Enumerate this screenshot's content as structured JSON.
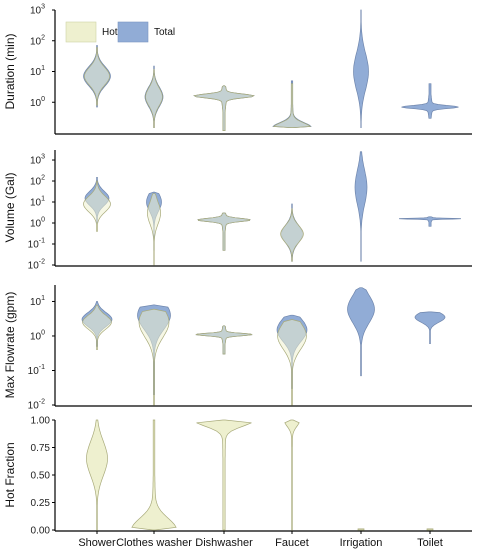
{
  "colors": {
    "hot": "#eef0cf",
    "total": "#91acd6",
    "overlap": "#c8d6d3",
    "axis": "#000000"
  },
  "chart_data": {
    "type": "violin",
    "legend": {
      "position": "top-left",
      "entries": [
        "Hot",
        "Total"
      ]
    },
    "categories": [
      "Shower",
      "Clothes washer",
      "Dishwasher",
      "Faucet",
      "Irrigation",
      "Toilet"
    ],
    "panels": [
      {
        "id": "duration",
        "ylabel": "Duration (min)",
        "scale": "log",
        "ylim": [
          0.1,
          1000
        ],
        "ticks": [
          {
            "b": "10",
            "e": "0",
            "v": 1
          },
          {
            "b": "10",
            "e": "1",
            "v": 10
          },
          {
            "b": "10",
            "e": "2",
            "v": 100
          },
          {
            "b": "10",
            "e": "3",
            "v": 1000
          }
        ],
        "series": {
          "Total": [
            {
              "min": 0.7,
              "max": 70,
              "mode": 7,
              "halfwidth": 0.45,
              "shape": "norm"
            },
            {
              "min": 0.15,
              "max": 15,
              "mode": 1.5,
              "halfwidth": 0.3,
              "shape": "norm"
            },
            {
              "min": 0.12,
              "max": 3.5,
              "mode": 1.6,
              "halfwidth": 0.9,
              "shape": "flare"
            },
            {
              "min": 0.15,
              "max": 5,
              "mode": 0.4,
              "halfwidth": 0.6,
              "shape": "bottom"
            },
            {
              "min": 0.15,
              "max": 1000,
              "mode": 10,
              "halfwidth": 0.25,
              "shape": "norm"
            },
            {
              "min": 0.3,
              "max": 4,
              "mode": 0.7,
              "halfwidth": 0.85,
              "shape": "flare"
            }
          ],
          "Hot": [
            {
              "min": 0.8,
              "max": 60,
              "mode": 7,
              "halfwidth": 0.42,
              "shape": "norm"
            },
            {
              "min": 0.15,
              "max": 12,
              "mode": 1.5,
              "halfwidth": 0.28,
              "shape": "norm"
            },
            {
              "min": 0.12,
              "max": 3.5,
              "mode": 1.6,
              "halfwidth": 0.9,
              "shape": "flare"
            },
            {
              "min": 0.15,
              "max": 4,
              "mode": 0.4,
              "halfwidth": 0.58,
              "shape": "bottom"
            },
            null,
            null
          ]
        }
      },
      {
        "id": "volume",
        "ylabel": "Volume (Gal)",
        "scale": "log",
        "ylim": [
          0.01,
          3000
        ],
        "ticks": [
          {
            "b": "10",
            "e": "-2",
            "v": 0.01
          },
          {
            "b": "10",
            "e": "-1",
            "v": 0.1
          },
          {
            "b": "10",
            "e": "0",
            "v": 1
          },
          {
            "b": "10",
            "e": "1",
            "v": 10
          },
          {
            "b": "10",
            "e": "2",
            "v": 100
          },
          {
            "b": "10",
            "e": "3",
            "v": 1000
          }
        ],
        "series": {
          "Total": [
            {
              "min": 1,
              "max": 150,
              "mode": 15,
              "halfwidth": 0.4,
              "shape": "norm"
            },
            {
              "min": 0.05,
              "max": 30,
              "mode": 10,
              "halfwidth": 0.25,
              "shape": "norm"
            },
            {
              "min": 0.05,
              "max": 3,
              "mode": 1.4,
              "halfwidth": 0.8,
              "shape": "flare"
            },
            {
              "min": 0.015,
              "max": 8,
              "mode": 0.3,
              "halfwidth": 0.35,
              "shape": "norm"
            },
            {
              "min": 0.015,
              "max": 2500,
              "mode": 50,
              "halfwidth": 0.2,
              "shape": "norm"
            },
            {
              "min": 0.7,
              "max": 2,
              "mode": 1.6,
              "halfwidth": 0.95,
              "shape": "flare"
            }
          ],
          "Hot": [
            {
              "min": 0.4,
              "max": 100,
              "mode": 8,
              "halfwidth": 0.45,
              "shape": "norm"
            },
            {
              "min": 0.01,
              "max": 25,
              "mode": 3,
              "halfwidth": 0.22,
              "shape": "norm"
            },
            {
              "min": 0.05,
              "max": 3,
              "mode": 1.4,
              "halfwidth": 0.8,
              "shape": "flare"
            },
            {
              "min": 0.015,
              "max": 5,
              "mode": 0.3,
              "halfwidth": 0.38,
              "shape": "norm"
            },
            null,
            null
          ]
        }
      },
      {
        "id": "flowrate",
        "ylabel": "Max Flowrate (gpm)",
        "scale": "log",
        "ylim": [
          0.01,
          30
        ],
        "ticks": [
          {
            "b": "10",
            "e": "-2",
            "v": 0.01
          },
          {
            "b": "10",
            "e": "-1",
            "v": 0.1
          },
          {
            "b": "10",
            "e": "0",
            "v": 1
          },
          {
            "b": "10",
            "e": "1",
            "v": 10
          }
        ],
        "series": {
          "Total": [
            {
              "min": 0.5,
              "max": 10,
              "mode": 3,
              "halfwidth": 0.5,
              "shape": "norm"
            },
            {
              "min": 0.02,
              "max": 8,
              "mode": 4,
              "halfwidth": 0.55,
              "shape": "norm"
            },
            {
              "min": 0.3,
              "max": 2,
              "mode": 1.1,
              "halfwidth": 0.85,
              "shape": "flare"
            },
            {
              "min": 0.03,
              "max": 4,
              "mode": 1.5,
              "halfwidth": 0.5,
              "shape": "norm"
            },
            {
              "min": 0.07,
              "max": 25,
              "mode": 6,
              "halfwidth": 0.45,
              "shape": "norm"
            },
            {
              "min": 0.6,
              "max": 5,
              "mode": 3.5,
              "halfwidth": 0.5,
              "shape": "norm"
            }
          ],
          "Hot": [
            {
              "min": 0.4,
              "max": 8,
              "mode": 2.5,
              "halfwidth": 0.48,
              "shape": "norm"
            },
            {
              "min": 0.01,
              "max": 6,
              "mode": 2.5,
              "halfwidth": 0.5,
              "shape": "norm"
            },
            {
              "min": 0.3,
              "max": 2,
              "mode": 1.1,
              "halfwidth": 0.85,
              "shape": "flare"
            },
            {
              "min": 0.01,
              "max": 3,
              "mode": 1,
              "halfwidth": 0.48,
              "shape": "norm"
            },
            null,
            null
          ]
        }
      },
      {
        "id": "hotfraction",
        "ylabel": "Hot Fraction",
        "scale": "linear",
        "ylim": [
          0,
          1
        ],
        "ticks": [
          {
            "t": "0.00",
            "v": 0
          },
          {
            "t": "0.25",
            "v": 0.25
          },
          {
            "t": "0.50",
            "v": 0.5
          },
          {
            "t": "0.75",
            "v": 0.75
          },
          {
            "t": "1.00",
            "v": 1
          }
        ],
        "series": {
          "Hot": [
            {
              "min": 0,
              "max": 1,
              "mode": 0.65,
              "halfwidth": 0.35,
              "shape": "norm"
            },
            {
              "min": 0,
              "max": 1,
              "mode": 0.02,
              "halfwidth": 0.7,
              "shape": "bottom"
            },
            {
              "min": 0,
              "max": 1,
              "mode": 0.98,
              "halfwidth": 0.95,
              "shape": "top"
            },
            {
              "min": 0,
              "max": 1,
              "mode": 0.98,
              "halfwidth": 0.25,
              "shape": "top"
            },
            {
              "min": 0,
              "max": 0.01,
              "mode": 0,
              "halfwidth": 0.1,
              "shape": "flat"
            },
            {
              "min": 0,
              "max": 0.01,
              "mode": 0,
              "halfwidth": 0.1,
              "shape": "flat"
            }
          ]
        }
      }
    ]
  }
}
